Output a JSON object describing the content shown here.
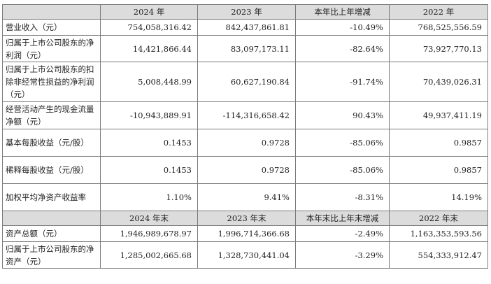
{
  "table": {
    "header1": {
      "label": "",
      "col1": "2024 年",
      "col2": "2023 年",
      "col3": "本年比上年增减",
      "col4": "2022 年"
    },
    "rows1": [
      {
        "label": "营业收入（元）",
        "c1": "754,058,316.42",
        "c2": "842,437,861.81",
        "c3": "-10.49%",
        "c4": "768,525,556.59"
      },
      {
        "label": "归属于上市公司股东的净利润（元）",
        "c1": "14,421,866.44",
        "c2": "83,097,173.11",
        "c3": "-82.64%",
        "c4": "73,927,770.13"
      },
      {
        "label": "归属于上市公司股东的扣除非经常性损益的净利润（元）",
        "c1": "5,008,448.99",
        "c2": "60,627,190.84",
        "c3": "-91.74%",
        "c4": "70,439,026.31"
      },
      {
        "label": "经营活动产生的现金流量净额（元）",
        "c1": "-10,943,889.91",
        "c2": "-114,316,658.42",
        "c3": "90.43%",
        "c4": "49,937,411.19"
      },
      {
        "label": "基本每股收益（元/股）",
        "c1": "0.1453",
        "c2": "0.9728",
        "c3": "-85.06%",
        "c4": "0.9857"
      },
      {
        "label": "稀释每股收益（元/股）",
        "c1": "0.1453",
        "c2": "0.9728",
        "c3": "-85.06%",
        "c4": "0.9857"
      },
      {
        "label": "加权平均净资产收益率",
        "c1": "1.10%",
        "c2": "9.41%",
        "c3": "-8.31%",
        "c4": "14.19%"
      }
    ],
    "header2": {
      "label": "",
      "col1": "2024 年末",
      "col2": "2023 年末",
      "col3": "本年末比上年末增减",
      "col4": "2022 年末"
    },
    "rows2": [
      {
        "label": "资产总额（元）",
        "c1": "1,946,989,678.97",
        "c2": "1,996,714,366.68",
        "c3": "-2.49%",
        "c4": "1,163,353,593.56"
      },
      {
        "label": "归属于上市公司股东的净资产（元）",
        "c1": "1,285,002,665.68",
        "c2": "1,328,730,441.04",
        "c3": "-3.29%",
        "c4": "554,333,912.47"
      }
    ]
  }
}
